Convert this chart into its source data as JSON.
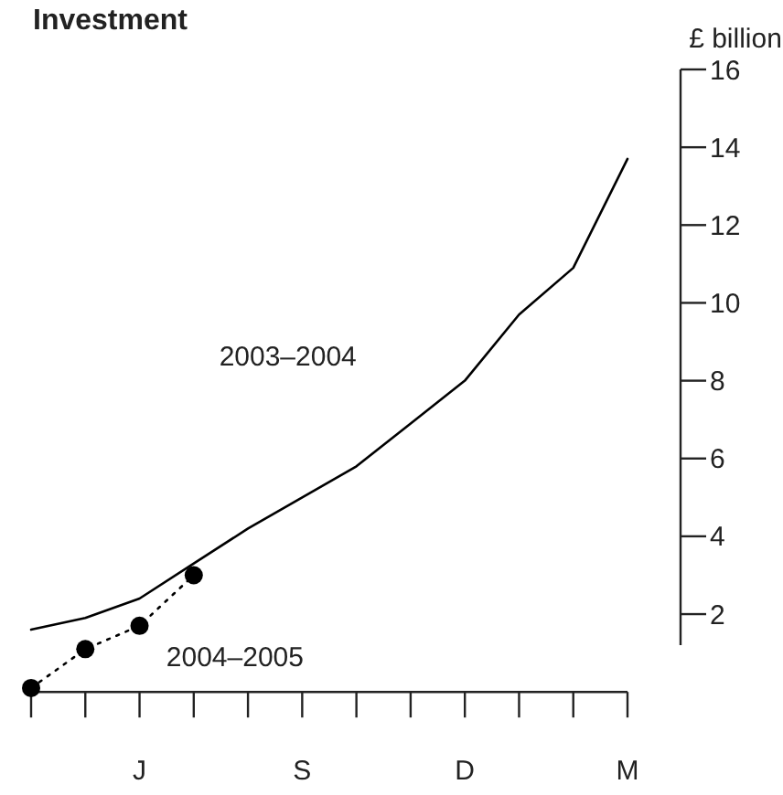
{
  "chart_data": {
    "type": "line",
    "title": "Investment",
    "ylabel": "£ billion",
    "categories": [
      null,
      null,
      "J",
      null,
      null,
      "S",
      null,
      null,
      "D",
      null,
      null,
      "M"
    ],
    "series": [
      {
        "name": "2003–2004",
        "color": "#000000",
        "values": [
          1.6,
          1.9,
          2.4,
          3.3,
          4.2,
          5.0,
          5.8,
          6.9,
          8.0,
          9.7,
          10.9,
          13.7
        ]
      },
      {
        "name": "2004–2005",
        "color": "#000000",
        "type": "line",
        "marker": "circle",
        "line_style": "dotted",
        "values": [
          0.1,
          1.1,
          1.7,
          3.0,
          null,
          null,
          null,
          null,
          null,
          null,
          null,
          null
        ]
      }
    ],
    "ylim": [
      0,
      16
    ],
    "yticks": [
      2,
      4,
      6,
      8,
      10,
      12,
      14,
      16
    ],
    "grid": false
  }
}
